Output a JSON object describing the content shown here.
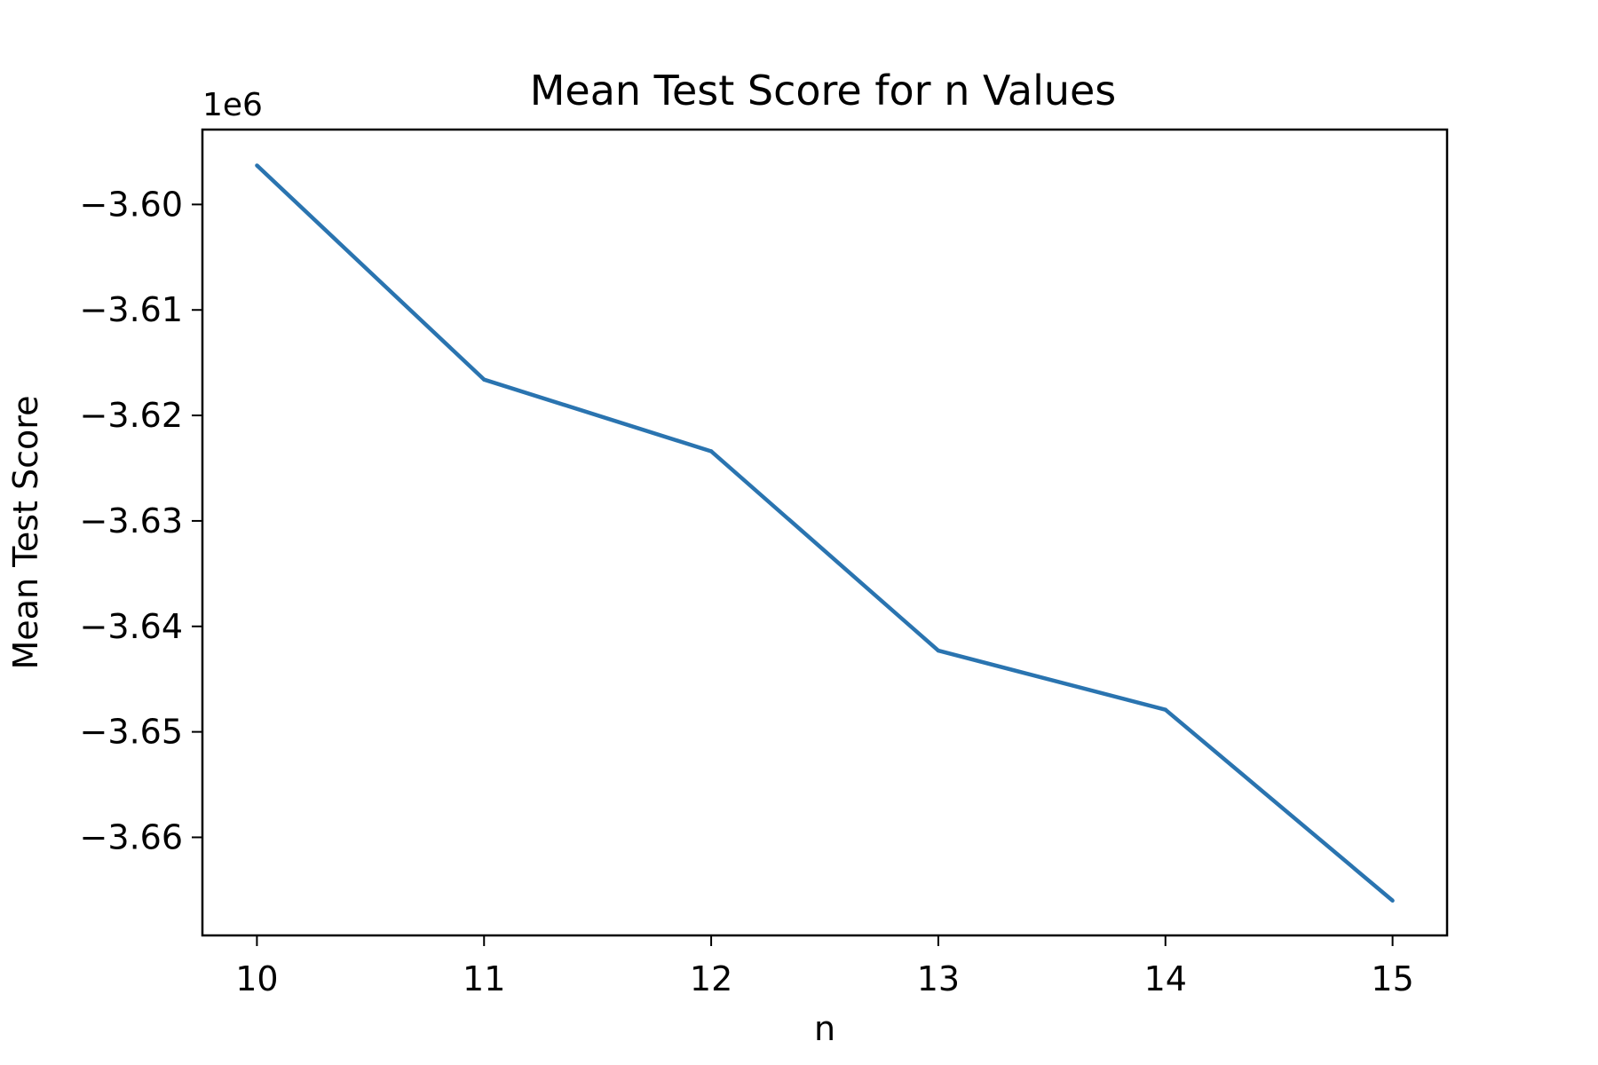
{
  "chart_data": {
    "type": "line",
    "title": "Mean Test Score for n Values",
    "xlabel": "n",
    "ylabel": "Mean Test Score",
    "y_offset_label": "1e6",
    "x": [
      10,
      11,
      12,
      13,
      14,
      15
    ],
    "series": [
      {
        "values": [
          -3.5963,
          -3.6166,
          -3.6234,
          -3.6423,
          -3.6479,
          -3.666
        ],
        "color": "#2a74b0"
      }
    ],
    "xticks": [
      10,
      11,
      12,
      13,
      14,
      15
    ],
    "xtick_labels": [
      "10",
      "11",
      "12",
      "13",
      "14",
      "15"
    ],
    "yticks": [
      -3.6,
      -3.61,
      -3.62,
      -3.63,
      -3.64,
      -3.65,
      -3.66
    ],
    "ytick_labels": [
      "−3.60",
      "−3.61",
      "−3.62",
      "−3.63",
      "−3.64",
      "−3.65",
      "−3.66"
    ],
    "xlim": [
      9.76,
      15.24
    ],
    "ylim": [
      -3.6693,
      -3.5929
    ],
    "y_units_multiplier": 1000000,
    "grid": false,
    "legend": "none"
  }
}
